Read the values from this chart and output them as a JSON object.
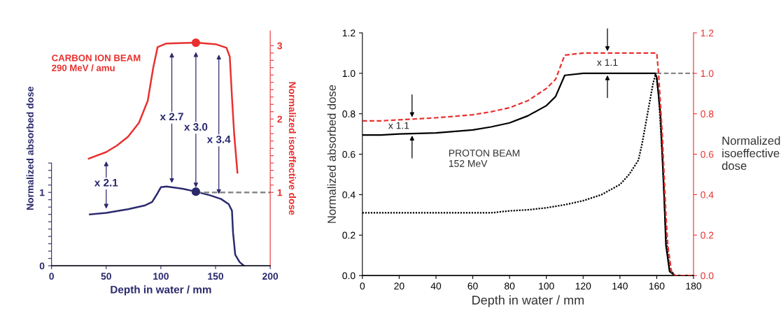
{
  "chart_data": [
    {
      "type": "line",
      "xlabel": "Depth in water / mm",
      "ylabel": "Normalized absorbed dose",
      "y2label": "Normalized isoeffective dose",
      "xlim": [
        0,
        200
      ],
      "xticks": [
        0,
        50,
        100,
        150,
        200
      ],
      "ylim": [
        0,
        3.2
      ],
      "yticks": [
        0,
        {
          "value": 0.1,
          "label": null
        },
        {
          "value": 0.2,
          "label": null
        },
        {
          "value": 0.3,
          "label": null
        },
        {
          "value": 0.4,
          "label": null
        },
        {
          "value": 0.5,
          "label": null
        },
        {
          "value": 0.6,
          "label": null
        },
        {
          "value": 0.7,
          "label": null
        },
        {
          "value": 0.8,
          "label": null
        },
        {
          "value": 0.9,
          "label": null
        },
        1,
        {
          "value": 1.1,
          "label": null
        },
        {
          "value": 1.2,
          "label": null
        },
        {
          "value": 1.3,
          "label": null
        },
        {
          "value": 1.4,
          "label": null
        }
      ],
      "y2lim": [
        0,
        3.2
      ],
      "y2ticks": [
        1,
        {
          "value": 1.1,
          "label": null
        },
        {
          "value": 1.2,
          "label": null
        },
        {
          "value": 1.3,
          "label": null
        },
        {
          "value": 1.4,
          "label": null
        },
        {
          "value": 1.5,
          "label": null
        },
        {
          "value": 1.6,
          "label": null
        },
        {
          "value": 1.7,
          "label": null
        },
        {
          "value": 1.8,
          "label": null
        },
        {
          "value": 1.9,
          "label": null
        },
        2,
        {
          "value": 2.1,
          "label": null
        },
        {
          "value": 2.2,
          "label": null
        },
        {
          "value": 2.3,
          "label": null
        },
        {
          "value": 2.4,
          "label": null
        },
        {
          "value": 2.5,
          "label": null
        },
        {
          "value": 2.6,
          "label": null
        },
        {
          "value": 2.7,
          "label": null
        },
        {
          "value": 2.8,
          "label": null
        },
        {
          "value": 2.9,
          "label": null
        },
        3
      ],
      "series": [
        {
          "color": "#2b2a6e",
          "line_style": "solid",
          "x": [
            35,
            50,
            70,
            85,
            92,
            97,
            100,
            105,
            120,
            132,
            145,
            155,
            162,
            165,
            166,
            168,
            172,
            176
          ],
          "values": [
            0.7,
            0.72,
            0.77,
            0.82,
            0.87,
            0.99,
            1.07,
            1.08,
            1.05,
            1.01,
            0.96,
            0.91,
            0.84,
            0.75,
            0.45,
            0.15,
            0.05,
            0.0
          ]
        },
        {
          "axis": "y2",
          "color": "#e8312f",
          "line_style": "solid",
          "x": [
            34,
            50,
            60,
            70,
            80,
            88,
            93,
            97,
            105,
            132,
            150,
            160,
            163,
            165,
            167,
            170
          ],
          "values": [
            1.46,
            1.55,
            1.64,
            1.76,
            1.95,
            2.25,
            2.7,
            2.98,
            3.03,
            3.04,
            3.02,
            2.97,
            2.85,
            2.3,
            1.8,
            1.27
          ]
        },
        {
          "color": "#888888",
          "line_style": "dashed",
          "x": [
            132,
            200
          ],
          "values": [
            1.0,
            1.0
          ]
        },
        {
          "type": "scatter",
          "color": "#2b2a6e",
          "marker": "circle",
          "x": [
            132
          ],
          "values": [
            1.01
          ]
        },
        {
          "type": "scatter",
          "axis": "y2",
          "color": "#e8312f",
          "marker": "circle",
          "x": [
            132
          ],
          "values": [
            3.04
          ]
        }
      ],
      "annotations": [
        "CARBON ION BEAM\n290 MeV / amu",
        {
          "text": "x 2.1",
          "x": 50,
          "y": 1.12
        },
        {
          "text": "x 2.7",
          "x": 110,
          "y": 2.02
        },
        {
          "text": "x 3.0",
          "x": 132,
          "y": 1.88
        },
        {
          "text": "x 3.4",
          "x": 153,
          "y": 1.71
        }
      ]
    },
    {
      "type": "line",
      "xlabel": "Depth in water / mm",
      "ylabel": "Normalized absorbed dose",
      "y2label": "Normalized isoeffective dose",
      "xlim": [
        0,
        180
      ],
      "xticks": [
        0,
        20,
        40,
        60,
        80,
        100,
        120,
        140,
        160,
        180
      ],
      "ylim": [
        0,
        1.2
      ],
      "yticks": [
        {
          "value": 0,
          "label": "0.0"
        },
        0.2,
        0.4,
        0.6,
        0.8,
        {
          "value": 1,
          "label": "1.0"
        },
        1.2
      ],
      "y2lim": [
        0,
        1.2
      ],
      "y2ticks": [
        {
          "value": 0,
          "label": "0.0"
        },
        0.2,
        0.4,
        0.6,
        0.8,
        {
          "value": 1,
          "label": "1.0"
        },
        1.2
      ],
      "series": [
        {
          "color": "#000000",
          "line_style": "solid",
          "x": [
            0,
            10,
            20,
            40,
            60,
            70,
            80,
            90,
            100,
            105,
            110,
            120,
            159,
            160,
            162,
            164,
            165,
            167,
            170,
            180
          ],
          "values": [
            0.695,
            0.695,
            0.7,
            0.705,
            0.72,
            0.735,
            0.755,
            0.79,
            0.84,
            0.885,
            0.99,
            1.0,
            1.0,
            0.98,
            0.8,
            0.4,
            0.15,
            0.02,
            0.0,
            0.0
          ]
        },
        {
          "axis": "y2",
          "color": "#e8312f",
          "line_style": "dashed",
          "x": [
            0,
            10,
            20,
            40,
            60,
            70,
            80,
            90,
            100,
            105,
            110,
            120,
            160,
            161,
            163,
            165,
            166,
            168,
            170,
            180
          ],
          "values": [
            0.765,
            0.765,
            0.77,
            0.78,
            0.795,
            0.81,
            0.83,
            0.865,
            0.925,
            0.97,
            1.09,
            1.1,
            1.1,
            1.0,
            0.7,
            0.3,
            0.15,
            0.02,
            0.0,
            0.0
          ]
        },
        {
          "color": "#000000",
          "line_style": "dotted",
          "x": [
            0,
            70,
            80,
            90,
            100,
            110,
            120,
            130,
            140,
            145,
            150,
            152,
            154,
            156,
            158,
            159.5,
            161,
            163,
            165,
            167,
            170,
            180
          ],
          "values": [
            0.31,
            0.31,
            0.32,
            0.325,
            0.335,
            0.35,
            0.37,
            0.4,
            0.45,
            0.5,
            0.57,
            0.65,
            0.75,
            0.85,
            0.95,
            1.0,
            0.9,
            0.6,
            0.2,
            0.03,
            0.0,
            0.0
          ]
        },
        {
          "color": "#888888",
          "line_style": "dashed",
          "x": [
            160,
            180
          ],
          "values": [
            1.0,
            1.0
          ]
        }
      ],
      "annotations": [
        "PROTON BEAM\n152 MeV",
        "x 1.1",
        "x 1.1"
      ]
    }
  ]
}
